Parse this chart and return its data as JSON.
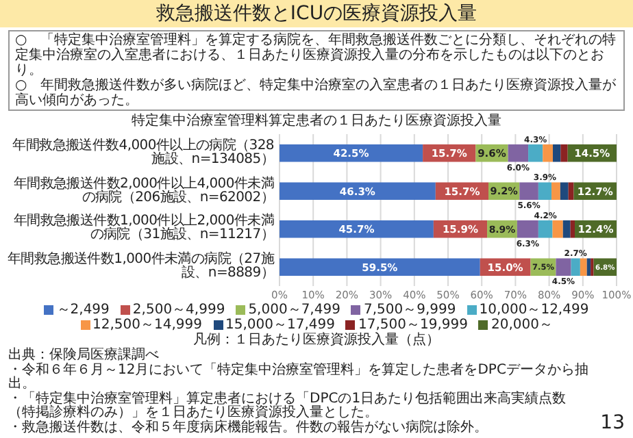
{
  "chart_data": {
    "type": "bar",
    "orientation": "horizontal",
    "stacked": true,
    "title": "救急搬送件数とICUの医療資源投入量",
    "subtitle": "特定集中治療室管理料算定患者の１日あたり医療資源投入量",
    "annotations": [
      "○　「特定集中治療室管理料」を算定する病院を、年間救急搬送件数ごとに分類し、それぞれの特定集中治療室の入室患者における、１日あたり医療資源投入量の分布を示したものは以下のとおり。",
      "○　年間救急搬送件数が多い病院ほど、特定集中治療室の入室患者の１日あたり医療資源投入量が高い傾向があった。",
      "出典：保険局医療課調べ",
      "・令和６年６月～12月において「特定集中治療室管理料」を算定した患者をDPCデータから抽出。",
      "・「特定集中治療室管理料」算定患者における「DPCの1日あたり包括範囲出来高実績点数（特掲診療料のみ）」を１日あたり医療資源投入量とした。",
      "・救急搬送件数は、令和５年度病床機能報告。件数の報告がない病院は除外。",
      "13"
    ],
    "categories": [
      "年間救急搬送件数4,000件以上の病院（328施設、n=134085）",
      "年間救急搬送件数2,000件以上4,000件未満の病院（206施設、n=62002）",
      "年間救急搬送件数1,000件以上2,000件未満の病院（31施設、n=11217）",
      "年間救急搬送件数1,000件未満の病院（27施設、n=8889）"
    ],
    "series": [
      {
        "name": "～2,499",
        "color": "#4472c4",
        "values": [
          42.5,
          46.3,
          45.7,
          59.5
        ],
        "value_labels": [
          "42.5%",
          "46.3%",
          "45.7%",
          "59.5%"
        ]
      },
      {
        "name": "2,500～4,999",
        "color": "#c0504d",
        "values": [
          15.7,
          15.7,
          15.9,
          15.0
        ],
        "value_labels": [
          "15.7%",
          "15.7%",
          "15.9%",
          "15.0%"
        ]
      },
      {
        "name": "5,000～7,499",
        "color": "#9bbb59",
        "values": [
          9.6,
          9.2,
          8.9,
          7.5
        ],
        "value_labels": [
          "9.6%",
          "9.2%",
          "8.9%",
          "7.5%"
        ]
      },
      {
        "name": "7,500～9,999",
        "color": "#8064a2",
        "values": [
          6.0,
          5.6,
          6.3,
          4.5
        ],
        "value_labels": [
          "6.0%",
          "5.6%",
          "6.3%",
          "4.5%"
        ]
      },
      {
        "name": "10,000～12,499",
        "color": "#4bacc6",
        "values": [
          4.3,
          3.9,
          4.2,
          2.7
        ],
        "value_labels": [
          "4.3%",
          "3.9%",
          "4.2%",
          "2.7%"
        ]
      },
      {
        "name": "12,500～14,999",
        "color": "#f79646",
        "values": [
          3.0,
          2.6,
          3.1,
          2.0
        ]
      },
      {
        "name": "15,000～17,499",
        "color": "#1f497d",
        "values": [
          2.3,
          2.4,
          2.2,
          1.1
        ]
      },
      {
        "name": "17,500～19,999",
        "color": "#8b2323",
        "values": [
          2.1,
          1.6,
          1.3,
          0.9
        ]
      },
      {
        "name": "20,000～",
        "color": "#4f6b28",
        "values": [
          14.5,
          12.7,
          12.4,
          6.8
        ],
        "value_labels": [
          "14.5%",
          "12.7%",
          "12.4%",
          "6.8%"
        ]
      }
    ],
    "xlim": [
      0,
      100
    ],
    "xticks": [
      {
        "value": 0,
        "label": "0%"
      },
      {
        "value": 10,
        "label": "10%"
      },
      {
        "value": 20,
        "label": "20%"
      },
      {
        "value": 30,
        "label": "30%"
      },
      {
        "value": 40,
        "label": "40%"
      },
      {
        "value": 50,
        "label": "50%"
      },
      {
        "value": 60,
        "label": "60%"
      },
      {
        "value": 70,
        "label": "70%"
      },
      {
        "value": 80,
        "label": "80%"
      },
      {
        "value": 90,
        "label": "90%"
      },
      {
        "value": 100,
        "label": "100%"
      }
    ],
    "grid": "x",
    "legend": "bottom",
    "legend_title": "凡例：１日あたり医療資源投入量（点）"
  }
}
